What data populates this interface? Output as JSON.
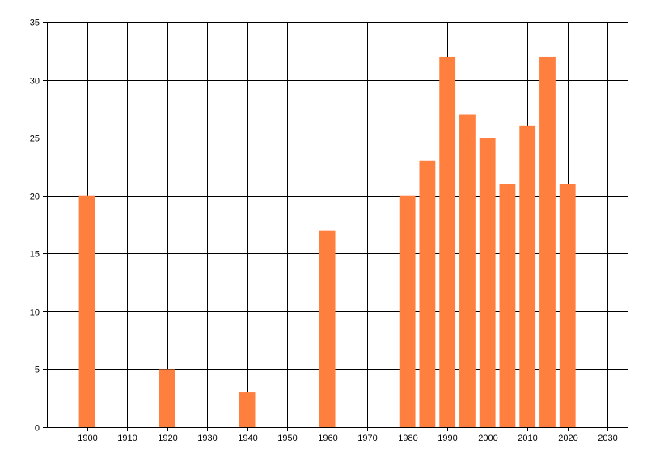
{
  "chart_data": {
    "type": "bar",
    "title": "",
    "xlabel": "",
    "ylabel": "",
    "x": [
      1900,
      1920,
      1940,
      1960,
      1980,
      1985,
      1990,
      1995,
      2000,
      2005,
      2010,
      2015,
      2020
    ],
    "values": [
      20,
      5,
      3,
      17,
      20,
      23,
      32,
      27,
      25,
      21,
      26,
      32,
      21
    ],
    "xlim": [
      1890,
      2035
    ],
    "ylim": [
      0,
      35
    ],
    "x_ticks": [
      1900,
      1910,
      1920,
      1930,
      1940,
      1950,
      1960,
      1970,
      1980,
      1990,
      2000,
      2010,
      2020,
      2030
    ],
    "y_ticks": [
      0,
      5,
      10,
      15,
      20,
      25,
      30,
      35
    ],
    "bar_width": 4,
    "grid": true,
    "legend": "none",
    "colors": {
      "bar": "#ff7f3f",
      "grid": "#000000",
      "axis": "#000000",
      "text": "#000000"
    }
  }
}
